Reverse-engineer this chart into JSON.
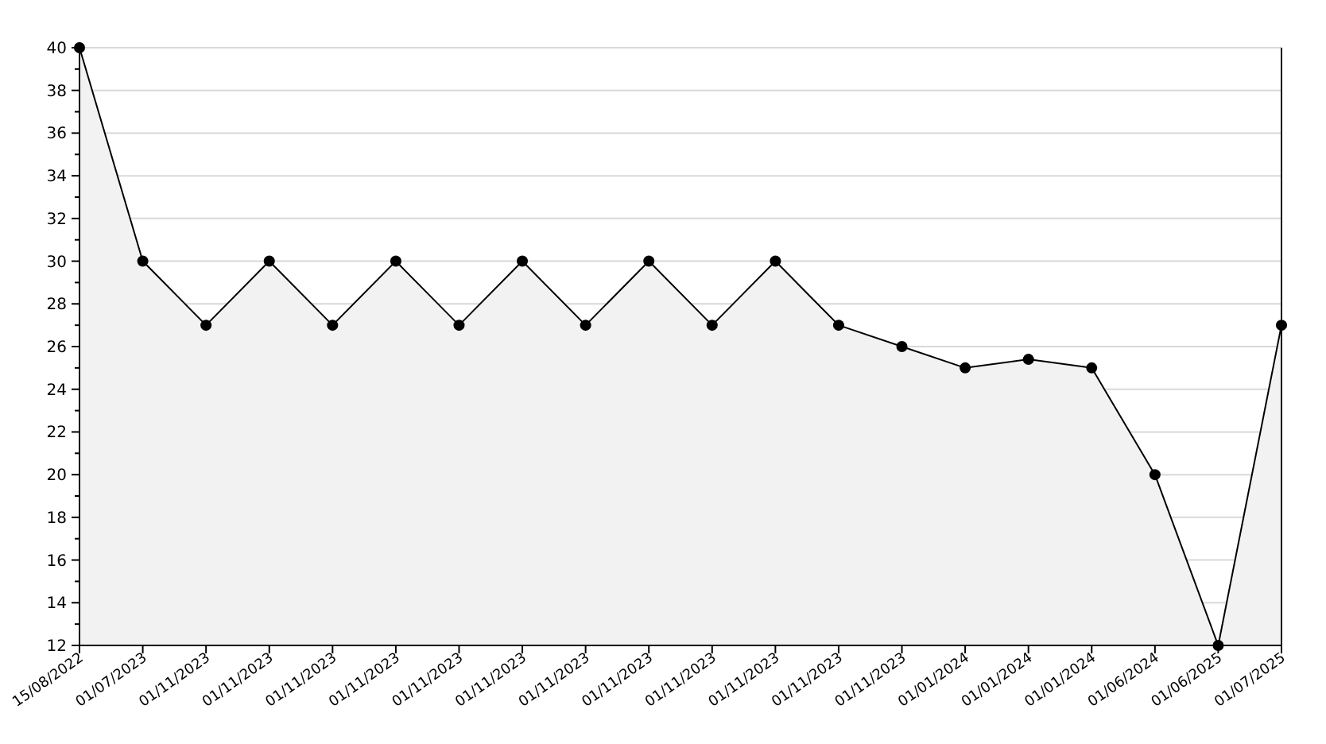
{
  "chart_data": {
    "type": "area",
    "categories": [
      "15/08/2022",
      "01/07/2023",
      "01/11/2023",
      "01/11/2023",
      "01/11/2023",
      "01/11/2023",
      "01/11/2023",
      "01/11/2023",
      "01/11/2023",
      "01/11/2023",
      "01/11/2023",
      "01/11/2023",
      "01/11/2023",
      "01/11/2023",
      "01/01/2024",
      "01/01/2024",
      "01/01/2024",
      "01/06/2024",
      "01/06/2025",
      "01/07/2025"
    ],
    "series": [
      {
        "color": "#000000",
        "values": [
          40,
          30,
          27,
          30,
          27,
          30,
          27,
          30,
          27,
          30,
          27,
          30,
          27,
          26,
          25,
          25.4,
          25,
          20,
          12,
          27
        ]
      }
    ],
    "ylim": [
      12,
      40
    ],
    "yticks": [
      12,
      14,
      16,
      18,
      20,
      22,
      24,
      26,
      28,
      30,
      32,
      34,
      36,
      38,
      40
    ],
    "grid": "y",
    "marker": "circle",
    "line_style": "solid"
  }
}
